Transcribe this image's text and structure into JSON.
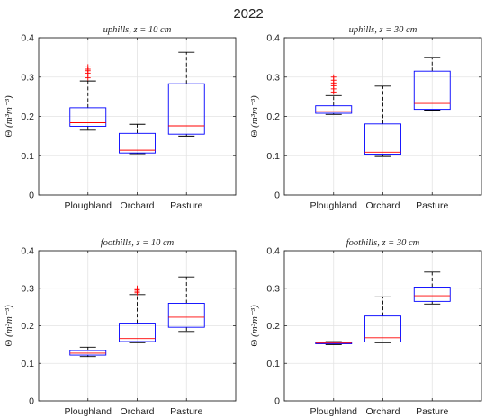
{
  "figure_title": "2022",
  "chart_data": [
    {
      "type": "box",
      "title_prefix": "uphills",
      "title_suffix": ", z = 10 cm",
      "ylabel_main": "Θ",
      "ylabel_unit": "(m³m⁻³)",
      "ylim": [
        0,
        0.4
      ],
      "yticks": [
        "0",
        "0.1",
        "0.2",
        "0.3",
        "0.4"
      ],
      "grid": true,
      "categories": [
        "Ploughland",
        "Orchard",
        "Pasture"
      ],
      "boxes": [
        {
          "min": 0.165,
          "q1": 0.175,
          "median": 0.184,
          "q3": 0.222,
          "max": 0.29,
          "outliers": [
            0.298,
            0.305,
            0.31,
            0.316,
            0.32,
            0.326
          ]
        },
        {
          "min": 0.105,
          "q1": 0.107,
          "median": 0.114,
          "q3": 0.157,
          "max": 0.18,
          "outliers": []
        },
        {
          "min": 0.15,
          "q1": 0.155,
          "median": 0.176,
          "q3": 0.283,
          "max": 0.363,
          "outliers": []
        }
      ]
    },
    {
      "type": "box",
      "title_prefix": "uphills",
      "title_suffix": ", z = 30 cm",
      "ylabel_main": "Θ",
      "ylabel_unit": "(m³m⁻³)",
      "ylim": [
        0,
        0.4
      ],
      "yticks": [
        "0",
        "0.1",
        "0.2",
        "0.3",
        "0.4"
      ],
      "grid": true,
      "categories": [
        "Ploughland",
        "Orchard",
        "Pasture"
      ],
      "boxes": [
        {
          "min": 0.205,
          "q1": 0.208,
          "median": 0.213,
          "q3": 0.227,
          "max": 0.253,
          "outliers": [
            0.262,
            0.27,
            0.278,
            0.285,
            0.292,
            0.3
          ]
        },
        {
          "min": 0.098,
          "q1": 0.104,
          "median": 0.109,
          "q3": 0.181,
          "max": 0.277,
          "outliers": []
        },
        {
          "min": 0.216,
          "q1": 0.218,
          "median": 0.233,
          "q3": 0.315,
          "max": 0.35,
          "outliers": []
        }
      ]
    },
    {
      "type": "box",
      "title_prefix": "foothills",
      "title_suffix": ", z = 10 cm",
      "ylabel_main": "Θ",
      "ylabel_unit": "(m³m⁻³)",
      "ylim": [
        0,
        0.4
      ],
      "yticks": [
        "0",
        "0.1",
        "0.2",
        "0.3",
        "0.4"
      ],
      "grid": true,
      "categories": [
        "Ploughland",
        "Orchard",
        "Pasture"
      ],
      "boxes": [
        {
          "min": 0.118,
          "q1": 0.122,
          "median": 0.127,
          "q3": 0.134,
          "max": 0.143,
          "outliers": []
        },
        {
          "min": 0.155,
          "q1": 0.158,
          "median": 0.166,
          "q3": 0.207,
          "max": 0.283,
          "outliers": [
            0.288,
            0.292,
            0.296,
            0.3
          ]
        },
        {
          "min": 0.185,
          "q1": 0.196,
          "median": 0.223,
          "q3": 0.26,
          "max": 0.33,
          "outliers": []
        }
      ]
    },
    {
      "type": "box",
      "title_prefix": "foothills",
      "title_suffix": ", z = 30 cm",
      "ylabel_main": "Θ",
      "ylabel_unit": "(m³m⁻³)",
      "ylim": [
        0,
        0.4
      ],
      "yticks": [
        "0",
        "0.1",
        "0.2",
        "0.3",
        "0.4"
      ],
      "grid": true,
      "categories": [
        "Ploughland",
        "Orchard",
        "Pasture"
      ],
      "boxes": [
        {
          "min": 0.15,
          "q1": 0.152,
          "median": 0.154,
          "q3": 0.156,
          "max": 0.158,
          "outliers": []
        },
        {
          "min": 0.155,
          "q1": 0.157,
          "median": 0.168,
          "q3": 0.226,
          "max": 0.277,
          "outliers": []
        },
        {
          "min": 0.258,
          "q1": 0.265,
          "median": 0.28,
          "q3": 0.303,
          "max": 0.343,
          "outliers": []
        }
      ]
    }
  ],
  "colors": {
    "box": "#0000ff",
    "median": "#ff0000",
    "outlier": "#ff0000",
    "whisker": "#000000",
    "grid": "#e3e3e3",
    "axis": "#262626"
  }
}
